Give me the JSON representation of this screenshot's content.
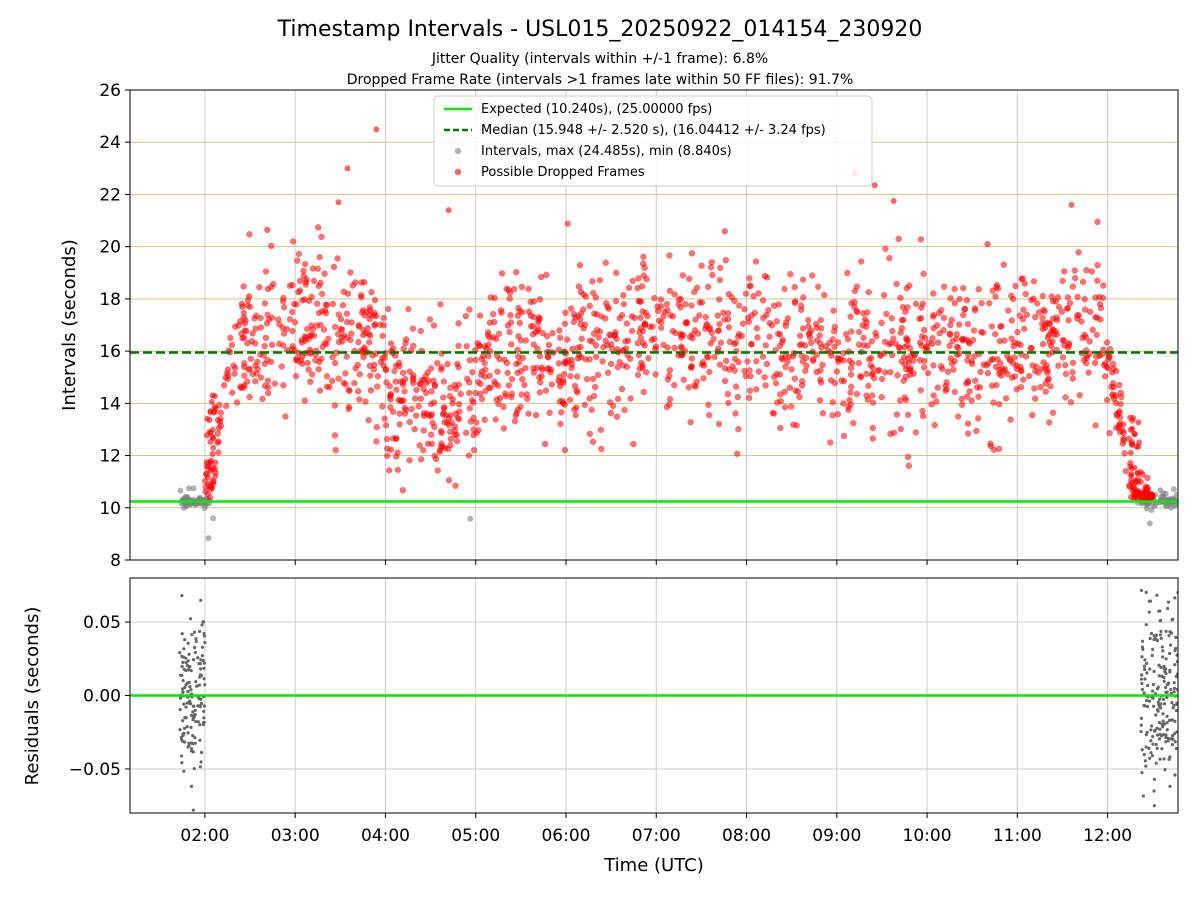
{
  "chart_data": {
    "type": "scatter",
    "title": "Timestamp Intervals - USL015_20250922_014154_230920",
    "subtitle_line1": "Jitter Quality (intervals within +/-1 frame): 6.8%",
    "subtitle_line2": "Dropped Frame Rate (intervals >1 frames late within 50 FF files): 91.7%",
    "x_tick_labels": [
      "02:00",
      "03:00",
      "04:00",
      "05:00",
      "06:00",
      "07:00",
      "08:00",
      "09:00",
      "10:00",
      "11:00",
      "12:00"
    ],
    "x_tick_hours": [
      2,
      3,
      4,
      5,
      6,
      7,
      8,
      9,
      10,
      11,
      12
    ],
    "xlim_hours": [
      1.17,
      12.78
    ],
    "xlabel": "Time (UTC)",
    "top_panel": {
      "ylabel": "Intervals (seconds)",
      "ylim": [
        8,
        26
      ],
      "y_ticks": [
        8,
        10,
        12,
        14,
        16,
        18,
        20,
        22,
        24,
        26
      ],
      "expected_value": 10.24,
      "median_value": 15.948,
      "legend": {
        "position": "upper center",
        "entries": [
          "Expected (10.240s), (25.00000 fps)",
          "Median (15.948 +/- 2.520 s), (16.04412 +/- 3.24 fps)",
          "Intervals, max (24.485s), min (8.840s)",
          "Possible Dropped Frames"
        ]
      },
      "series": [
        {
          "name": "Intervals",
          "color": "#808080",
          "max": 24.485,
          "min": 8.84
        },
        {
          "name": "Possible Dropped Frames",
          "color": "#ff0000"
        }
      ]
    },
    "bottom_panel": {
      "ylabel": "Residuals (seconds)",
      "ylim": [
        -0.08,
        0.08
      ],
      "y_ticks": [
        0.05,
        0.0,
        -0.05
      ],
      "y_tick_labels": [
        "0.05",
        "0.00",
        "−0.05"
      ],
      "zero_line": 0.0
    },
    "grid": true,
    "colors": {
      "expected": "#00ee00",
      "median": "#007700",
      "dropped": "#ff0000",
      "interval": "#808080",
      "hgrid_top": "#d4c48a",
      "grid": "#cccccc"
    }
  }
}
